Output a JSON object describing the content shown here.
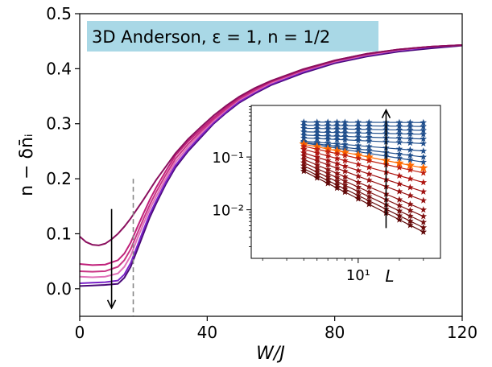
{
  "chart_data": [
    {
      "type": "line",
      "title": "3D Anderson, ε = 1, n = 1/2",
      "xlabel": "W/J",
      "ylabel": "n − δn̄ᵢ",
      "xlim": [
        0,
        120
      ],
      "ylim": [
        -0.05,
        0.5
      ],
      "xticks": [
        0,
        40,
        80,
        120
      ],
      "yticks": [
        0.0,
        0.1,
        0.2,
        0.3,
        0.4,
        0.5
      ],
      "xtick_labels": [
        "0",
        "40",
        "80",
        "120"
      ],
      "ytick_labels": [
        "0.0",
        "0.1",
        "0.2",
        "0.3",
        "0.4",
        "0.5"
      ],
      "grid": false,
      "vline": {
        "x": 16.8,
        "style": "dashed",
        "color": "#888888"
      },
      "arrow": {
        "x": 10,
        "from": 0.145,
        "to": -0.035,
        "direction": "down"
      },
      "series": [
        {
          "color": "#4a0a78",
          "points": [
            [
              0,
              0.005
            ],
            [
              4,
              0.006
            ],
            [
              8,
              0.007
            ],
            [
              12,
              0.009
            ],
            [
              14,
              0.02
            ],
            [
              16,
              0.04
            ],
            [
              18,
              0.07
            ],
            [
              20,
              0.1
            ],
            [
              22,
              0.13
            ],
            [
              24,
              0.155
            ],
            [
              27,
              0.19
            ],
            [
              30,
              0.22
            ],
            [
              34,
              0.25
            ],
            [
              38,
              0.275
            ],
            [
              42,
              0.3
            ],
            [
              46,
              0.32
            ],
            [
              50,
              0.338
            ],
            [
              55,
              0.355
            ],
            [
              60,
              0.37
            ],
            [
              70,
              0.392
            ],
            [
              80,
              0.41
            ],
            [
              90,
              0.422
            ],
            [
              100,
              0.431
            ],
            [
              110,
              0.437
            ],
            [
              120,
              0.442
            ]
          ]
        },
        {
          "color": "#7a22c8",
          "points": [
            [
              0,
              0.01
            ],
            [
              4,
              0.011
            ],
            [
              8,
              0.012
            ],
            [
              12,
              0.015
            ],
            [
              14,
              0.026
            ],
            [
              16,
              0.047
            ],
            [
              18,
              0.077
            ],
            [
              20,
              0.107
            ],
            [
              22,
              0.136
            ],
            [
              24,
              0.16
            ],
            [
              27,
              0.194
            ],
            [
              30,
              0.224
            ],
            [
              34,
              0.253
            ],
            [
              38,
              0.278
            ],
            [
              42,
              0.302
            ],
            [
              46,
              0.322
            ],
            [
              50,
              0.34
            ],
            [
              55,
              0.357
            ],
            [
              60,
              0.372
            ],
            [
              70,
              0.394
            ],
            [
              80,
              0.412
            ],
            [
              90,
              0.424
            ],
            [
              100,
              0.433
            ],
            [
              110,
              0.439
            ],
            [
              120,
              0.443
            ]
          ]
        },
        {
          "color": "#e070b8",
          "points": [
            [
              0,
              0.022
            ],
            [
              4,
              0.021
            ],
            [
              8,
              0.022
            ],
            [
              12,
              0.028
            ],
            [
              14,
              0.04
            ],
            [
              16,
              0.06
            ],
            [
              18,
              0.09
            ],
            [
              20,
              0.118
            ],
            [
              22,
              0.145
            ],
            [
              24,
              0.168
            ],
            [
              27,
              0.2
            ],
            [
              30,
              0.23
            ],
            [
              34,
              0.258
            ],
            [
              38,
              0.282
            ],
            [
              42,
              0.305
            ],
            [
              46,
              0.325
            ],
            [
              50,
              0.343
            ],
            [
              55,
              0.359
            ],
            [
              60,
              0.374
            ],
            [
              70,
              0.396
            ],
            [
              80,
              0.413
            ],
            [
              90,
              0.425
            ],
            [
              100,
              0.434
            ],
            [
              110,
              0.44
            ],
            [
              120,
              0.443
            ]
          ]
        },
        {
          "color": "#c93585",
          "points": [
            [
              0,
              0.032
            ],
            [
              4,
              0.031
            ],
            [
              8,
              0.032
            ],
            [
              12,
              0.04
            ],
            [
              14,
              0.052
            ],
            [
              16,
              0.072
            ],
            [
              18,
              0.1
            ],
            [
              20,
              0.127
            ],
            [
              22,
              0.153
            ],
            [
              24,
              0.176
            ],
            [
              27,
              0.207
            ],
            [
              30,
              0.236
            ],
            [
              34,
              0.263
            ],
            [
              38,
              0.286
            ],
            [
              42,
              0.308
            ],
            [
              46,
              0.327
            ],
            [
              50,
              0.345
            ],
            [
              55,
              0.361
            ],
            [
              60,
              0.376
            ],
            [
              70,
              0.397
            ],
            [
              80,
              0.414
            ],
            [
              90,
              0.426
            ],
            [
              100,
              0.435
            ],
            [
              110,
              0.44
            ],
            [
              120,
              0.443
            ]
          ]
        },
        {
          "color": "#c0207a",
          "points": [
            [
              0,
              0.045
            ],
            [
              4,
              0.043
            ],
            [
              8,
              0.044
            ],
            [
              12,
              0.052
            ],
            [
              14,
              0.064
            ],
            [
              16,
              0.084
            ],
            [
              18,
              0.111
            ],
            [
              20,
              0.137
            ],
            [
              22,
              0.162
            ],
            [
              24,
              0.184
            ],
            [
              27,
              0.214
            ],
            [
              30,
              0.242
            ],
            [
              34,
              0.268
            ],
            [
              38,
              0.29
            ],
            [
              42,
              0.311
            ],
            [
              46,
              0.33
            ],
            [
              50,
              0.347
            ],
            [
              55,
              0.363
            ],
            [
              60,
              0.377
            ],
            [
              70,
              0.398
            ],
            [
              80,
              0.415
            ],
            [
              90,
              0.427
            ],
            [
              100,
              0.435
            ],
            [
              110,
              0.44
            ],
            [
              120,
              0.443
            ]
          ]
        },
        {
          "color": "#8a0f5e",
          "points": [
            [
              0,
              0.095
            ],
            [
              2,
              0.085
            ],
            [
              4,
              0.08
            ],
            [
              6,
              0.079
            ],
            [
              8,
              0.082
            ],
            [
              10,
              0.09
            ],
            [
              12,
              0.1
            ],
            [
              14,
              0.113
            ],
            [
              16,
              0.128
            ],
            [
              18,
              0.145
            ],
            [
              20,
              0.162
            ],
            [
              22,
              0.18
            ],
            [
              24,
              0.198
            ],
            [
              27,
              0.222
            ],
            [
              30,
              0.246
            ],
            [
              34,
              0.272
            ],
            [
              38,
              0.294
            ],
            [
              42,
              0.315
            ],
            [
              46,
              0.333
            ],
            [
              50,
              0.349
            ],
            [
              55,
              0.365
            ],
            [
              60,
              0.378
            ],
            [
              70,
              0.399
            ],
            [
              80,
              0.415
            ],
            [
              90,
              0.427
            ],
            [
              100,
              0.435
            ],
            [
              110,
              0.44
            ],
            [
              120,
              0.443
            ]
          ]
        }
      ]
    },
    {
      "type": "line",
      "scale": "log-log",
      "xlabel": "L",
      "xticks_major": [
        10
      ],
      "xtick_labels": [
        "10¹"
      ],
      "yticks_major": [
        0.01,
        0.1
      ],
      "ytick_labels": [
        "10⁻²",
        "10⁻¹"
      ],
      "xlim": [
        1.65,
        40
      ],
      "ylim": [
        0.0012,
        0.95
      ],
      "x": [
        4,
        5,
        6,
        7,
        8,
        10,
        12,
        16,
        20,
        24,
        30
      ],
      "marker": "star",
      "arrow": {
        "x": 16,
        "from": 0.0045,
        "to": 0.78,
        "direction": "up"
      },
      "series": [
        {
          "color": "#1f4e8c",
          "y_start": 0.46,
          "y_end": 0.45
        },
        {
          "color": "#1f4e8c",
          "y_start": 0.4,
          "y_end": 0.38
        },
        {
          "color": "#1f4e8c",
          "y_start": 0.35,
          "y_end": 0.32
        },
        {
          "color": "#1f4e8c",
          "y_start": 0.3,
          "y_end": 0.27
        },
        {
          "color": "#1f4e8c",
          "y_start": 0.26,
          "y_end": 0.22
        },
        {
          "color": "#1f4e8c",
          "y_start": 0.23,
          "y_end": 0.18
        },
        {
          "color": "#1f4e8c",
          "y_start": 0.2,
          "y_end": 0.13
        },
        {
          "color": "#1f4e8c",
          "y_start": 0.19,
          "y_end": 0.1
        },
        {
          "color": "#1f4e8c",
          "y_start": 0.185,
          "y_end": 0.08
        },
        {
          "color": "#ff6a00",
          "y_start": 0.175,
          "y_end": 0.062
        },
        {
          "color": "#c02010",
          "y_start": 0.16,
          "y_end": 0.05
        },
        {
          "color": "#b01510",
          "y_start": 0.14,
          "y_end": 0.033
        },
        {
          "color": "#a01010",
          "y_start": 0.12,
          "y_end": 0.022
        },
        {
          "color": "#951010",
          "y_start": 0.105,
          "y_end": 0.015
        },
        {
          "color": "#8a1010",
          "y_start": 0.09,
          "y_end": 0.01
        },
        {
          "color": "#801010",
          "y_start": 0.078,
          "y_end": 0.0075
        },
        {
          "color": "#751010",
          "y_start": 0.068,
          "y_end": 0.0058
        },
        {
          "color": "#6a0a0a",
          "y_start": 0.06,
          "y_end": 0.0046
        },
        {
          "color": "#600808",
          "y_start": 0.054,
          "y_end": 0.0038
        }
      ]
    }
  ]
}
